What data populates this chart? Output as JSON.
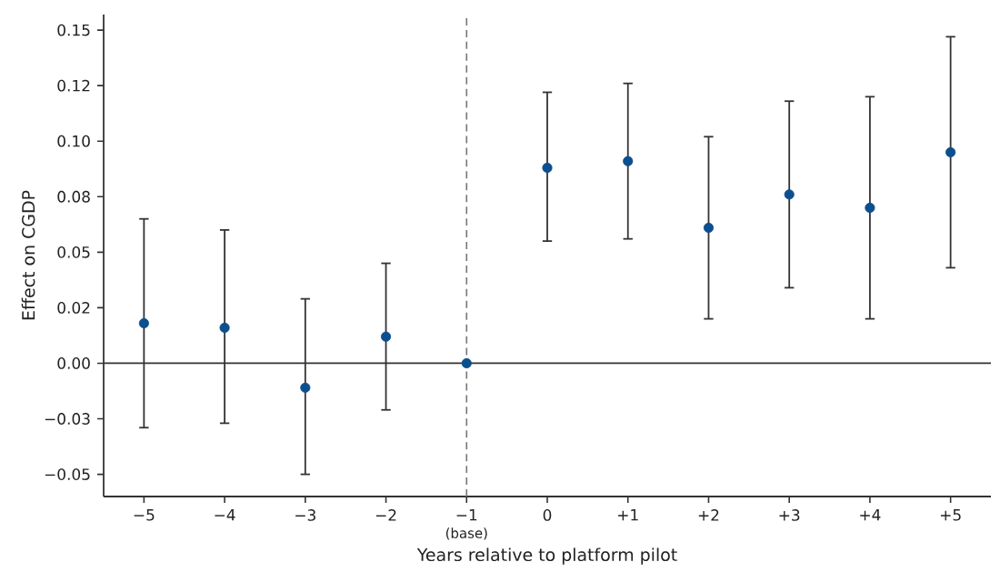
{
  "chart_data": {
    "type": "scatter",
    "xlabel": "Years relative to platform pilot",
    "ylabel": "Effect on CGDP",
    "x": [
      -5,
      -4,
      -3,
      -2,
      -1,
      0,
      1,
      2,
      3,
      4,
      5
    ],
    "series": [
      {
        "color": "#0b4f8f",
        "values": [
          0.018,
          0.016,
          -0.011,
          0.012,
          0.0,
          0.088,
          0.091,
          0.061,
          0.076,
          0.07,
          0.095
        ],
        "errors": [
          [
            -0.029,
            0.065
          ],
          [
            -0.027,
            0.06
          ],
          [
            -0.05,
            0.029
          ],
          [
            -0.021,
            0.045
          ],
          null,
          [
            0.055,
            0.122
          ],
          [
            0.056,
            0.126
          ],
          [
            0.02,
            0.102
          ],
          [
            0.034,
            0.118
          ],
          [
            0.02,
            0.12
          ],
          [
            0.043,
            0.147
          ]
        ]
      }
    ],
    "marker": "circle",
    "xlim": [
      -5.5,
      5.5
    ],
    "ylim": [
      -0.06,
      0.157
    ],
    "xticks": [
      {
        "value": -5,
        "label": "−5"
      },
      {
        "value": -4,
        "label": "−4"
      },
      {
        "value": -3,
        "label": "−3"
      },
      {
        "value": -2,
        "label": "−2"
      },
      {
        "value": -1,
        "label": "−1"
      },
      0,
      {
        "value": 1,
        "label": "+1"
      },
      {
        "value": 2,
        "label": "+2"
      },
      {
        "value": 3,
        "label": "+3"
      },
      {
        "value": 4,
        "label": "+4"
      },
      {
        "value": 5,
        "label": "+5"
      }
    ],
    "yticks": [
      {
        "value": -0.05,
        "label": "−0.05"
      },
      {
        "value": -0.025,
        "label": "−0.03"
      },
      {
        "value": 0,
        "label": "0.00"
      },
      {
        "value": 0.025,
        "label": "0.02"
      },
      {
        "value": 0.05,
        "label": "0.05"
      },
      {
        "value": 0.075,
        "label": "0.08"
      },
      {
        "value": 0.1,
        "label": "0.10"
      },
      {
        "value": 0.125,
        "label": "0.12"
      },
      {
        "value": 0.15,
        "label": "0.15"
      }
    ],
    "ref_lines": [
      {
        "axis": "y",
        "value": 0,
        "color": "#333333",
        "line_style": "solid"
      },
      {
        "axis": "x",
        "value": -1,
        "color": "#777777",
        "line_style": "dashed"
      }
    ],
    "annotations": [
      "(base)"
    ],
    "grid": false
  }
}
